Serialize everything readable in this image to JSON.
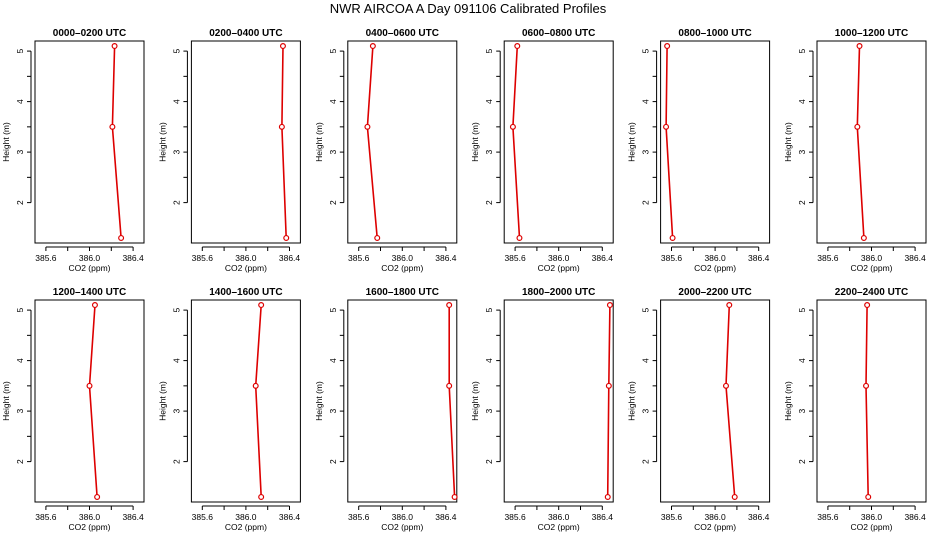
{
  "figure": {
    "title": "NWR AIRCOA A  Day 091106  Calibrated Profiles"
  },
  "chart_data": [
    {
      "type": "line",
      "title": "0000–0200 UTC",
      "xlabel": "CO2 (ppm)",
      "ylabel": "Height (m)",
      "xlim": [
        385.5,
        386.5
      ],
      "ylim": [
        1.2,
        5.2
      ],
      "xticks": [
        "385.6",
        "386.0",
        "386.4"
      ],
      "yticks": [
        "2",
        "3",
        "4",
        "5"
      ],
      "grid": false,
      "color": "#dd0000",
      "series": [
        {
          "x": [
            386.23,
            386.21,
            386.29
          ],
          "y": [
            5.1,
            3.5,
            1.3
          ]
        }
      ]
    },
    {
      "type": "line",
      "title": "0200–0400 UTC",
      "xlabel": "CO2 (ppm)",
      "ylabel": "Height (m)",
      "xlim": [
        385.5,
        386.5
      ],
      "ylim": [
        1.2,
        5.2
      ],
      "xticks": [
        "385.6",
        "386.0",
        "386.4"
      ],
      "yticks": [
        "2",
        "3",
        "4",
        "5"
      ],
      "grid": false,
      "color": "#dd0000",
      "series": [
        {
          "x": [
            386.34,
            386.33,
            386.37
          ],
          "y": [
            5.1,
            3.5,
            1.3
          ]
        }
      ]
    },
    {
      "type": "line",
      "title": "0400–0600 UTC",
      "xlabel": "CO2 (ppm)",
      "ylabel": "Height (m)",
      "xlim": [
        385.5,
        386.5
      ],
      "ylim": [
        1.2,
        5.2
      ],
      "xticks": [
        "385.6",
        "386.0",
        "386.4"
      ],
      "yticks": [
        "2",
        "3",
        "4",
        "5"
      ],
      "grid": false,
      "color": "#dd0000",
      "series": [
        {
          "x": [
            385.73,
            385.68,
            385.77
          ],
          "y": [
            5.1,
            3.5,
            1.3
          ]
        }
      ]
    },
    {
      "type": "line",
      "title": "0600–0800 UTC",
      "xlabel": "CO2 (ppm)",
      "ylabel": "Height (m)",
      "xlim": [
        385.5,
        386.5
      ],
      "ylim": [
        1.2,
        5.2
      ],
      "xticks": [
        "385.6",
        "386.0",
        "386.4"
      ],
      "yticks": [
        "2",
        "3",
        "4",
        "5"
      ],
      "grid": false,
      "color": "#dd0000",
      "series": [
        {
          "x": [
            385.62,
            385.58,
            385.64
          ],
          "y": [
            5.1,
            3.5,
            1.3
          ]
        }
      ]
    },
    {
      "type": "line",
      "title": "0800–1000 UTC",
      "xlabel": "CO2 (ppm)",
      "ylabel": "Height (m)",
      "xlim": [
        385.5,
        386.5
      ],
      "ylim": [
        1.2,
        5.2
      ],
      "xticks": [
        "385.6",
        "386.0",
        "386.4"
      ],
      "yticks": [
        "2",
        "3",
        "4",
        "5"
      ],
      "grid": false,
      "color": "#dd0000",
      "series": [
        {
          "x": [
            385.56,
            385.55,
            385.61
          ],
          "y": [
            5.1,
            3.5,
            1.3
          ]
        }
      ]
    },
    {
      "type": "line",
      "title": "1000–1200 UTC",
      "xlabel": "CO2 (ppm)",
      "ylabel": "Height (m)",
      "xlim": [
        385.5,
        386.5
      ],
      "ylim": [
        1.2,
        5.2
      ],
      "xticks": [
        "385.6",
        "386.0",
        "386.4"
      ],
      "yticks": [
        "2",
        "3",
        "4",
        "5"
      ],
      "grid": false,
      "color": "#dd0000",
      "series": [
        {
          "x": [
            385.89,
            385.87,
            385.93
          ],
          "y": [
            5.1,
            3.5,
            1.3
          ]
        }
      ]
    },
    {
      "type": "line",
      "title": "1200–1400 UTC",
      "xlabel": "CO2 (ppm)",
      "ylabel": "Height (m)",
      "xlim": [
        385.5,
        386.5
      ],
      "ylim": [
        1.2,
        5.2
      ],
      "xticks": [
        "385.6",
        "386.0",
        "386.4"
      ],
      "yticks": [
        "2",
        "3",
        "4",
        "5"
      ],
      "grid": false,
      "color": "#dd0000",
      "series": [
        {
          "x": [
            386.05,
            386.0,
            386.07
          ],
          "y": [
            5.1,
            3.5,
            1.3
          ]
        }
      ]
    },
    {
      "type": "line",
      "title": "1400–1600 UTC",
      "xlabel": "CO2 (ppm)",
      "ylabel": "Height (m)",
      "xlim": [
        385.5,
        386.5
      ],
      "ylim": [
        1.2,
        5.2
      ],
      "xticks": [
        "385.6",
        "386.0",
        "386.4"
      ],
      "yticks": [
        "2",
        "3",
        "4",
        "5"
      ],
      "grid": false,
      "color": "#dd0000",
      "series": [
        {
          "x": [
            386.14,
            386.09,
            386.14
          ],
          "y": [
            5.1,
            3.5,
            1.3
          ]
        }
      ]
    },
    {
      "type": "line",
      "title": "1600–1800 UTC",
      "xlabel": "CO2 (ppm)",
      "ylabel": "Height (m)",
      "xlim": [
        385.5,
        386.5
      ],
      "ylim": [
        1.2,
        5.2
      ],
      "xticks": [
        "385.6",
        "386.0",
        "386.4"
      ],
      "yticks": [
        "2",
        "3",
        "4",
        "5"
      ],
      "grid": false,
      "color": "#dd0000",
      "series": [
        {
          "x": [
            386.43,
            386.43,
            386.48
          ],
          "y": [
            5.1,
            3.5,
            1.3
          ]
        }
      ]
    },
    {
      "type": "line",
      "title": "1800–2000 UTC",
      "xlabel": "CO2 (ppm)",
      "ylabel": "Height (m)",
      "xlim": [
        385.5,
        386.5
      ],
      "ylim": [
        1.2,
        5.2
      ],
      "xticks": [
        "385.6",
        "386.0",
        "386.4"
      ],
      "yticks": [
        "2",
        "3",
        "4",
        "5"
      ],
      "grid": false,
      "color": "#dd0000",
      "series": [
        {
          "x": [
            386.47,
            386.46,
            386.45
          ],
          "y": [
            5.1,
            3.5,
            1.3
          ]
        }
      ]
    },
    {
      "type": "line",
      "title": "2000–2200 UTC",
      "xlabel": "CO2 (ppm)",
      "ylabel": "Height (m)",
      "xlim": [
        385.5,
        386.5
      ],
      "ylim": [
        1.2,
        5.2
      ],
      "xticks": [
        "385.6",
        "386.0",
        "386.4"
      ],
      "yticks": [
        "2",
        "3",
        "4",
        "5"
      ],
      "grid": false,
      "color": "#dd0000",
      "series": [
        {
          "x": [
            386.13,
            386.1,
            386.18
          ],
          "y": [
            5.1,
            3.5,
            1.3
          ]
        }
      ]
    },
    {
      "type": "line",
      "title": "2200–2400 UTC",
      "xlabel": "CO2 (ppm)",
      "ylabel": "Height (m)",
      "xlim": [
        385.5,
        386.5
      ],
      "ylim": [
        1.2,
        5.2
      ],
      "xticks": [
        "385.6",
        "386.0",
        "386.4"
      ],
      "yticks": [
        "2",
        "3",
        "4",
        "5"
      ],
      "grid": false,
      "color": "#dd0000",
      "series": [
        {
          "x": [
            385.96,
            385.95,
            385.97
          ],
          "y": [
            5.1,
            3.5,
            1.3
          ]
        }
      ]
    }
  ]
}
